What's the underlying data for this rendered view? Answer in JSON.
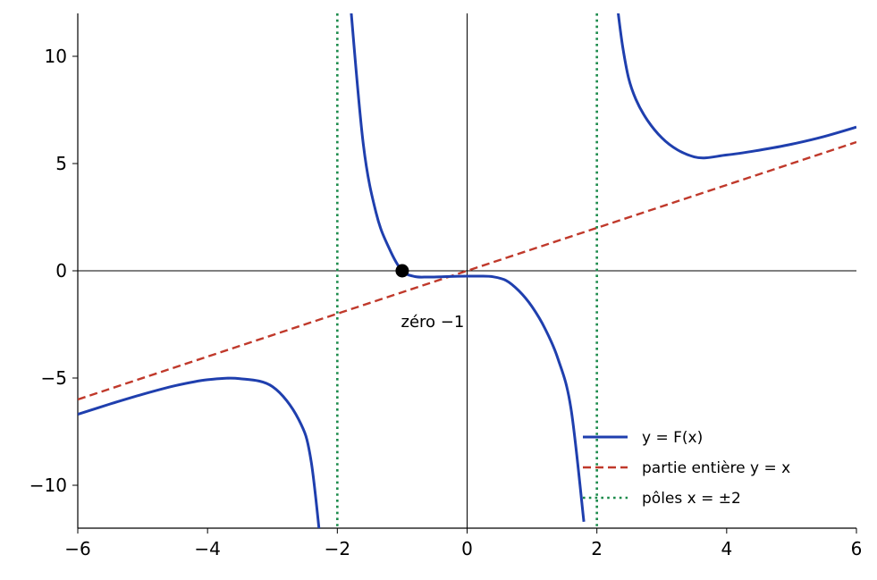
{
  "chart_data": {
    "type": "line",
    "title": "",
    "xlabel": "",
    "ylabel": "",
    "xlim": [
      -6,
      6
    ],
    "ylim": [
      -12,
      12
    ],
    "x_ticks": [
      -6,
      -4,
      -2,
      0,
      2,
      4,
      6
    ],
    "y_ticks": [
      -10,
      -5,
      0,
      5,
      10
    ],
    "x_tick_labels": [
      "−6",
      "−4",
      "−2",
      "0",
      "2",
      "4",
      "6"
    ],
    "y_tick_labels": [
      "−10",
      "−5",
      "0",
      "5",
      "10"
    ],
    "grid": false,
    "legend_position": "lower-right",
    "series": [
      {
        "name": "y = F(x)",
        "style": "solid",
        "color": "#1f3fae",
        "points": [
          [
            -6.0,
            -6.69
          ],
          [
            -5.5,
            -6.21
          ],
          [
            -5.0,
            -5.76
          ],
          [
            -4.5,
            -5.36
          ],
          [
            -4.0,
            -5.08
          ],
          [
            -3.5,
            -5.03
          ],
          [
            -3.0,
            -5.4
          ],
          [
            -2.6,
            -6.91
          ],
          [
            -2.4,
            -8.95
          ],
          [
            -2.2,
            -14.5
          ],
          [
            -1.8,
            12.5
          ],
          [
            -1.6,
            5.9
          ],
          [
            -1.4,
            2.67
          ],
          [
            -1.2,
            1.04
          ],
          [
            -1.0,
            0.0
          ],
          [
            -0.8,
            -0.27
          ],
          [
            -0.6,
            -0.29
          ],
          [
            -0.4,
            -0.28
          ],
          [
            -0.2,
            -0.26
          ],
          [
            0.0,
            -0.25
          ],
          [
            0.2,
            -0.25
          ],
          [
            0.4,
            -0.28
          ],
          [
            0.6,
            -0.45
          ],
          [
            0.8,
            -0.94
          ],
          [
            1.0,
            -1.67
          ],
          [
            1.2,
            -2.69
          ],
          [
            1.4,
            -4.1
          ],
          [
            1.6,
            -6.4
          ],
          [
            1.8,
            -11.7
          ],
          [
            2.2,
            15.4
          ],
          [
            2.4,
            10.4
          ],
          [
            2.6,
            8.0
          ],
          [
            3.0,
            6.2
          ],
          [
            3.5,
            5.31
          ],
          [
            4.0,
            5.4
          ],
          [
            4.5,
            5.62
          ],
          [
            5.0,
            5.9
          ],
          [
            5.5,
            6.26
          ],
          [
            6.0,
            6.7
          ]
        ]
      },
      {
        "name": "partie entière y = x",
        "style": "dashed",
        "color": "#c0392b",
        "points": [
          [
            -6,
            -6
          ],
          [
            6,
            6
          ]
        ]
      },
      {
        "name": "pôles x = ±2",
        "style": "dotted",
        "color": "#1a8a4a",
        "vertical_lines": [
          -2,
          2
        ]
      }
    ],
    "annotations": [
      {
        "label": "zéro −1",
        "point": [
          -1,
          0
        ]
      }
    ]
  }
}
